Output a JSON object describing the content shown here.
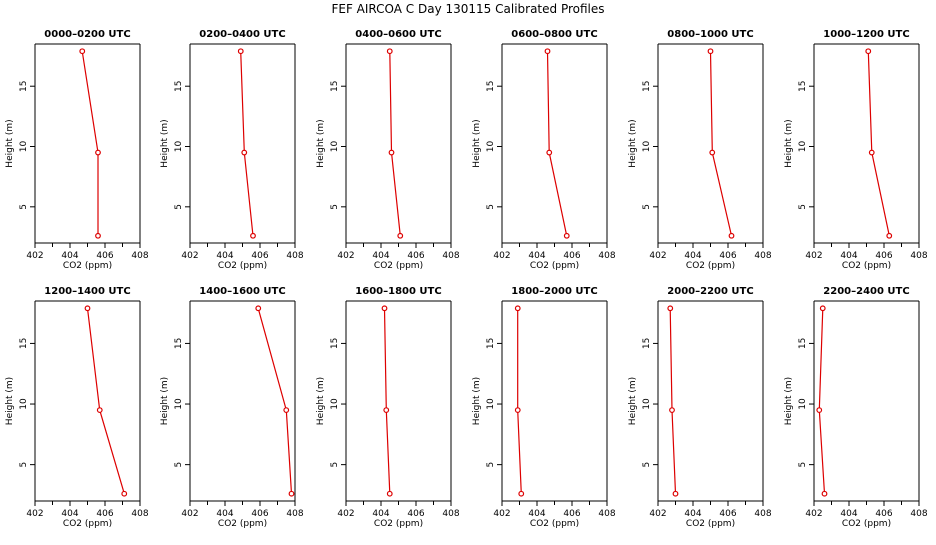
{
  "title": "FEF AIRCOA C  Day 130115  Calibrated Profiles",
  "colors": {
    "line": "#dd0000",
    "axis": "#000000"
  },
  "chart_data": {
    "type": "line",
    "shared": {
      "xlabel": "CO2 (ppm)",
      "ylabel": "Height (m)",
      "xlim": [
        402,
        408
      ],
      "ylim": [
        2,
        18.5
      ],
      "xticks": [
        "402",
        "404",
        "406",
        "408"
      ],
      "yticks": [
        "5",
        "10",
        "15"
      ],
      "heights": [
        17.9,
        9.5,
        2.6
      ]
    },
    "panels": [
      {
        "title": "0000–0200 UTC",
        "co2": [
          404.7,
          405.6,
          405.6
        ]
      },
      {
        "title": "0200–0400 UTC",
        "co2": [
          404.9,
          405.1,
          405.6
        ]
      },
      {
        "title": "0400–0600 UTC",
        "co2": [
          404.5,
          404.6,
          405.1
        ]
      },
      {
        "title": "0600–0800 UTC",
        "co2": [
          404.6,
          404.7,
          405.7
        ]
      },
      {
        "title": "0800–1000 UTC",
        "co2": [
          405.0,
          405.1,
          406.2
        ]
      },
      {
        "title": "1000–1200 UTC",
        "co2": [
          405.1,
          405.3,
          406.3
        ]
      },
      {
        "title": "1200–1400 UTC",
        "co2": [
          405.0,
          405.7,
          407.1
        ]
      },
      {
        "title": "1400–1600 UTC",
        "co2": [
          405.9,
          407.5,
          407.8
        ]
      },
      {
        "title": "1600–1800 UTC",
        "co2": [
          404.2,
          404.3,
          404.5
        ]
      },
      {
        "title": "1800–2000 UTC",
        "co2": [
          402.9,
          402.9,
          403.1
        ]
      },
      {
        "title": "2000–2200 UTC",
        "co2": [
          402.7,
          402.8,
          403.0
        ]
      },
      {
        "title": "2200–2400 UTC",
        "co2": [
          402.5,
          402.3,
          402.6
        ]
      }
    ]
  }
}
